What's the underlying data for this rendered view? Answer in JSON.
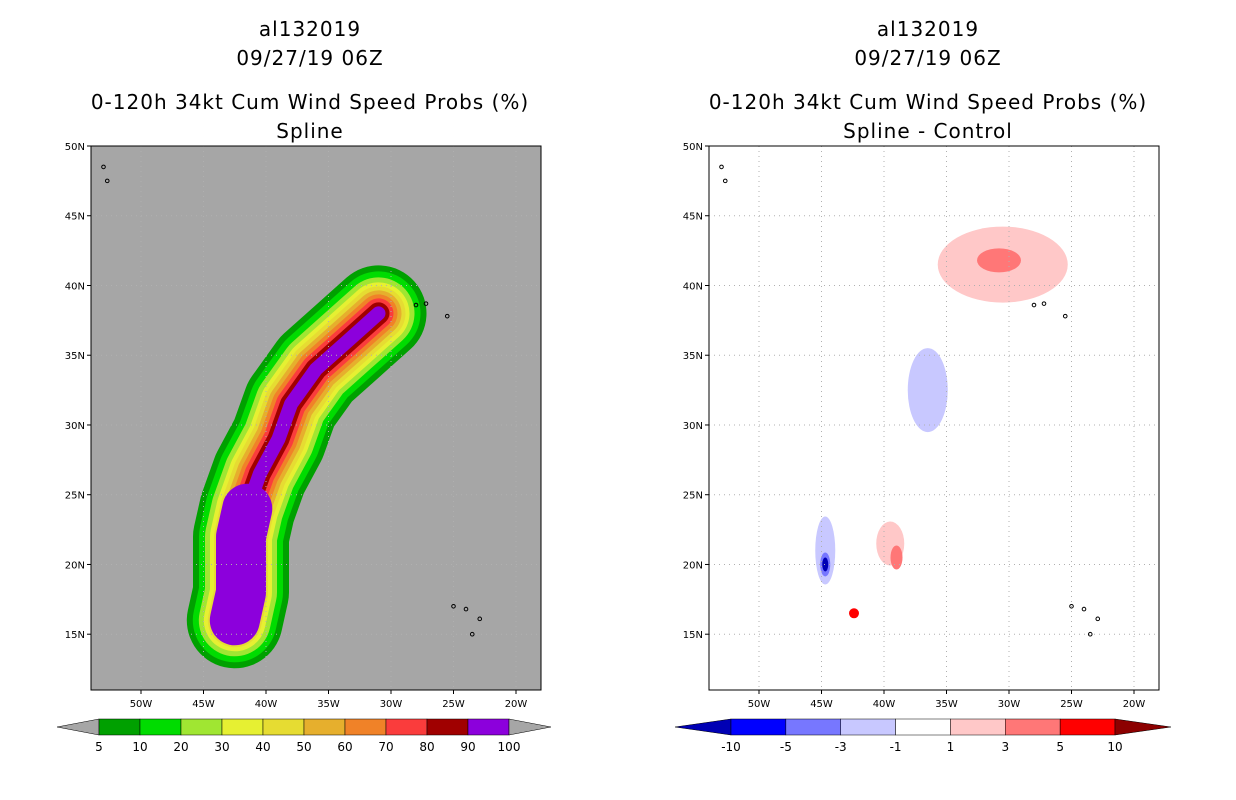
{
  "colors": {
    "land_ocean_gray": "#a6a6a6",
    "grid_dot": "#b0b0b0",
    "prob_scale": [
      "#00a000",
      "#00dc00",
      "#a0e632",
      "#e6f032",
      "#e6dc32",
      "#e6af2d",
      "#f08228",
      "#fa3c3c",
      "#a00000",
      "#8c00dc"
    ],
    "diff_scale": [
      "#0000b4",
      "#0000ff",
      "#7777ff",
      "#c8c8ff",
      "#ffffff",
      "#ffc8c8",
      "#ff7777",
      "#ff0000",
      "#8c0000"
    ]
  },
  "left_panel": {
    "line1": "al132019",
    "line2": "09/27/19 06Z",
    "line3": "0-120h 34kt Cum Wind Speed Probs (%)",
    "line4": "Spline"
  },
  "right_panel": {
    "line1": "al132019",
    "line2": "09/27/19 06Z",
    "line3": "0-120h 34kt Cum Wind Speed Probs (%)",
    "line4": "Spline - Control"
  },
  "chart_data": [
    {
      "type": "heatmap",
      "title": "0-120h 34kt Cum Wind Speed Probs (%) Spline",
      "storm": "al132019",
      "valid": "09/27/19 06Z",
      "xlim": [
        -54,
        -18
      ],
      "ylim": [
        11,
        50
      ],
      "xticks": [
        "50W",
        "45W",
        "40W",
        "35W",
        "30W",
        "25W",
        "20W"
      ],
      "yticks": [
        "15N",
        "20N",
        "25N",
        "30N",
        "35N",
        "40N",
        "45N",
        "50N"
      ],
      "levels": [
        5,
        10,
        20,
        30,
        40,
        50,
        60,
        70,
        80,
        90,
        100
      ],
      "colorbar_labels": [
        "5",
        "10",
        "20",
        "30",
        "40",
        "50",
        "60",
        "70",
        "80",
        "90",
        "100"
      ],
      "track_points": [
        [
          -42.5,
          16
        ],
        [
          -42,
          18
        ],
        [
          -42,
          20
        ],
        [
          -42,
          22
        ],
        [
          -41.5,
          24
        ],
        [
          -40.5,
          26.5
        ],
        [
          -39,
          29
        ],
        [
          -38,
          31.5
        ],
        [
          -36,
          34
        ],
        [
          -33.5,
          36
        ],
        [
          -31,
          38
        ]
      ]
    },
    {
      "type": "heatmap",
      "title": "0-120h 34kt Cum Wind Speed Probs (%) Spline - Control",
      "storm": "al132019",
      "valid": "09/27/19 06Z",
      "xlim": [
        -54,
        -18
      ],
      "ylim": [
        11,
        50
      ],
      "xticks": [
        "50W",
        "45W",
        "40W",
        "35W",
        "30W",
        "25W",
        "20W"
      ],
      "yticks": [
        "15N",
        "20N",
        "25N",
        "30N",
        "35N",
        "40N",
        "45N",
        "50N"
      ],
      "levels": [
        -10,
        -5,
        -3,
        -1,
        1,
        3,
        5,
        10
      ],
      "colorbar_labels": [
        "-10",
        "-5",
        "-3",
        "-1",
        "1",
        "3",
        "5",
        "10"
      ]
    }
  ]
}
